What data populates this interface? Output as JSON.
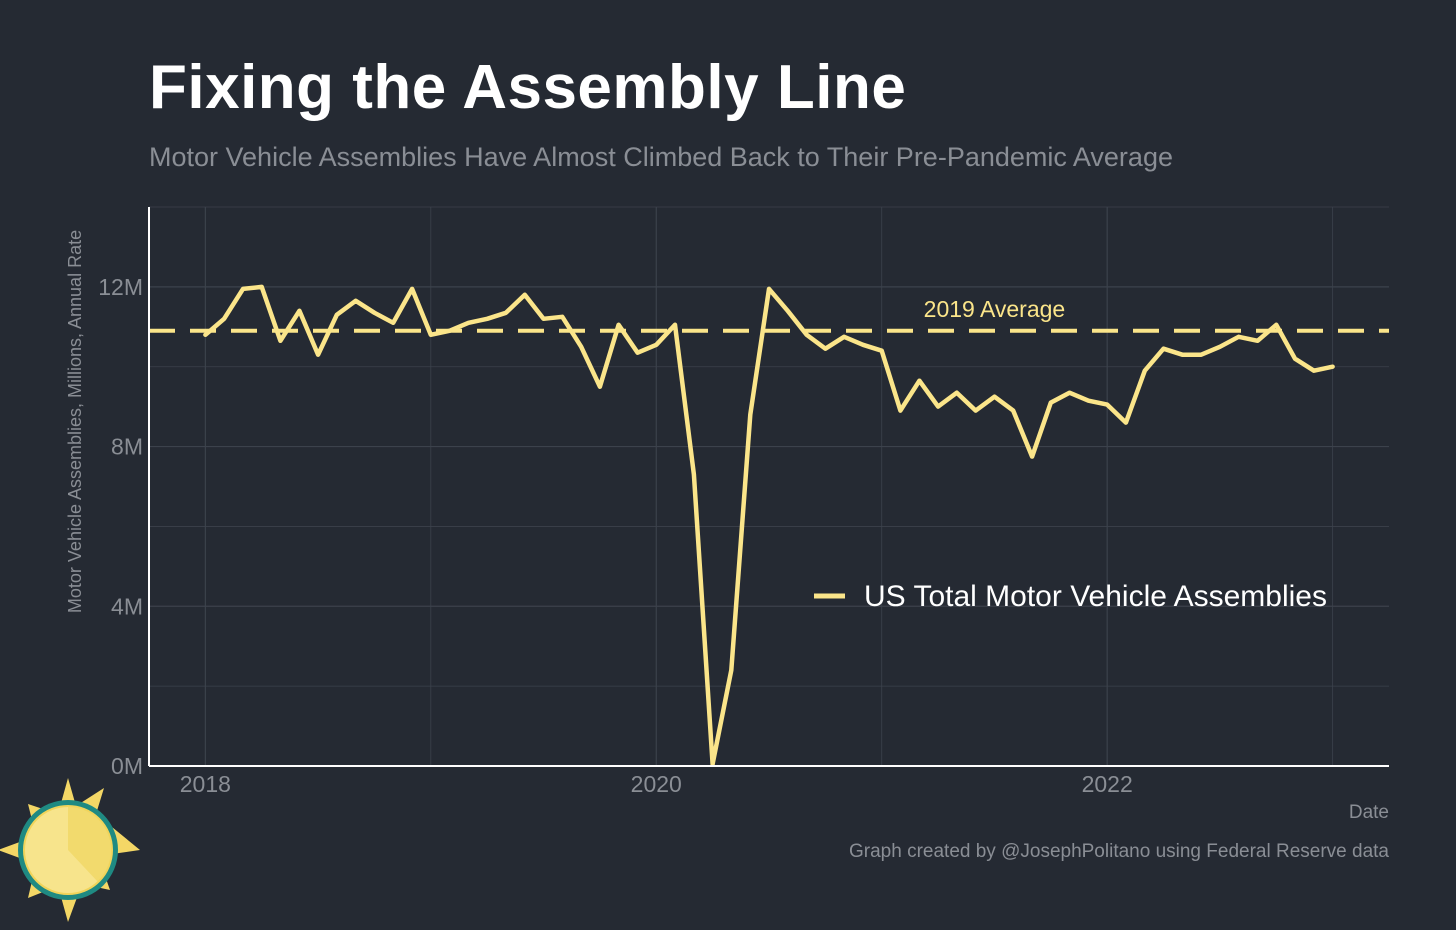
{
  "header": {
    "title": "Fixing the Assembly Line",
    "subtitle": "Motor Vehicle Assemblies Have Almost Climbed Back to Their Pre-Pandemic Average"
  },
  "footer": {
    "caption": "Graph created by @JosephPolitano using Federal Reserve data"
  },
  "colors": {
    "background": "#252a33",
    "line": "#fbe58a",
    "grid": "#3c424c",
    "axis": "#ffffff",
    "muted_text": "#8a8e95"
  },
  "chart_data": {
    "type": "line",
    "title": "Fixing the Assembly Line",
    "subtitle": "Motor Vehicle Assemblies Have Almost Climbed Back to Their Pre-Pandemic Average",
    "xlabel": "Date",
    "ylabel": "Motor Vehicle Assemblies, Millions, Annual Rate",
    "xlim": [
      2017.75,
      2023.25
    ],
    "ylim": [
      0,
      14
    ],
    "x_ticks": [
      {
        "value": 2018,
        "label": "2018"
      },
      {
        "value": 2020,
        "label": "2020"
      },
      {
        "value": 2022,
        "label": "2022"
      }
    ],
    "y_ticks": [
      {
        "value": 0,
        "label": "0M"
      },
      {
        "value": 4,
        "label": "4M"
      },
      {
        "value": 8,
        "label": "8M"
      },
      {
        "value": 12,
        "label": "12M"
      }
    ],
    "grid": true,
    "legend_position": "center-right",
    "reference_line": {
      "label": "2019 Average",
      "value": 10.9
    },
    "series": [
      {
        "name": "US Total Motor Vehicle Assemblies",
        "points": [
          [
            2018.0,
            10.8
          ],
          [
            2018.083,
            11.2
          ],
          [
            2018.167,
            11.95
          ],
          [
            2018.25,
            12.0
          ],
          [
            2018.333,
            10.65
          ],
          [
            2018.417,
            11.4
          ],
          [
            2018.5,
            10.3
          ],
          [
            2018.583,
            11.3
          ],
          [
            2018.667,
            11.65
          ],
          [
            2018.75,
            11.35
          ],
          [
            2018.833,
            11.1
          ],
          [
            2018.917,
            11.95
          ],
          [
            2019.0,
            10.8
          ],
          [
            2019.083,
            10.9
          ],
          [
            2019.167,
            11.1
          ],
          [
            2019.25,
            11.2
          ],
          [
            2019.333,
            11.35
          ],
          [
            2019.417,
            11.8
          ],
          [
            2019.5,
            11.2
          ],
          [
            2019.583,
            11.25
          ],
          [
            2019.667,
            10.5
          ],
          [
            2019.75,
            9.5
          ],
          [
            2019.833,
            11.05
          ],
          [
            2019.917,
            10.35
          ],
          [
            2020.0,
            10.55
          ],
          [
            2020.083,
            11.05
          ],
          [
            2020.167,
            7.3
          ],
          [
            2020.25,
            0.05
          ],
          [
            2020.333,
            2.4
          ],
          [
            2020.417,
            8.8
          ],
          [
            2020.5,
            11.95
          ],
          [
            2020.583,
            11.4
          ],
          [
            2020.667,
            10.8
          ],
          [
            2020.75,
            10.45
          ],
          [
            2020.833,
            10.75
          ],
          [
            2020.917,
            10.55
          ],
          [
            2021.0,
            10.4
          ],
          [
            2021.083,
            8.9
          ],
          [
            2021.167,
            9.65
          ],
          [
            2021.25,
            9.0
          ],
          [
            2021.333,
            9.35
          ],
          [
            2021.417,
            8.9
          ],
          [
            2021.5,
            9.25
          ],
          [
            2021.583,
            8.9
          ],
          [
            2021.667,
            7.75
          ],
          [
            2021.75,
            9.1
          ],
          [
            2021.833,
            9.35
          ],
          [
            2021.917,
            9.15
          ],
          [
            2022.0,
            9.05
          ],
          [
            2022.083,
            8.6
          ],
          [
            2022.167,
            9.9
          ],
          [
            2022.25,
            10.45
          ],
          [
            2022.333,
            10.3
          ],
          [
            2022.417,
            10.3
          ],
          [
            2022.5,
            10.5
          ],
          [
            2022.583,
            10.75
          ],
          [
            2022.667,
            10.65
          ],
          [
            2022.75,
            11.05
          ],
          [
            2022.833,
            10.2
          ],
          [
            2022.917,
            9.9
          ],
          [
            2023.0,
            10.0
          ]
        ]
      }
    ]
  }
}
